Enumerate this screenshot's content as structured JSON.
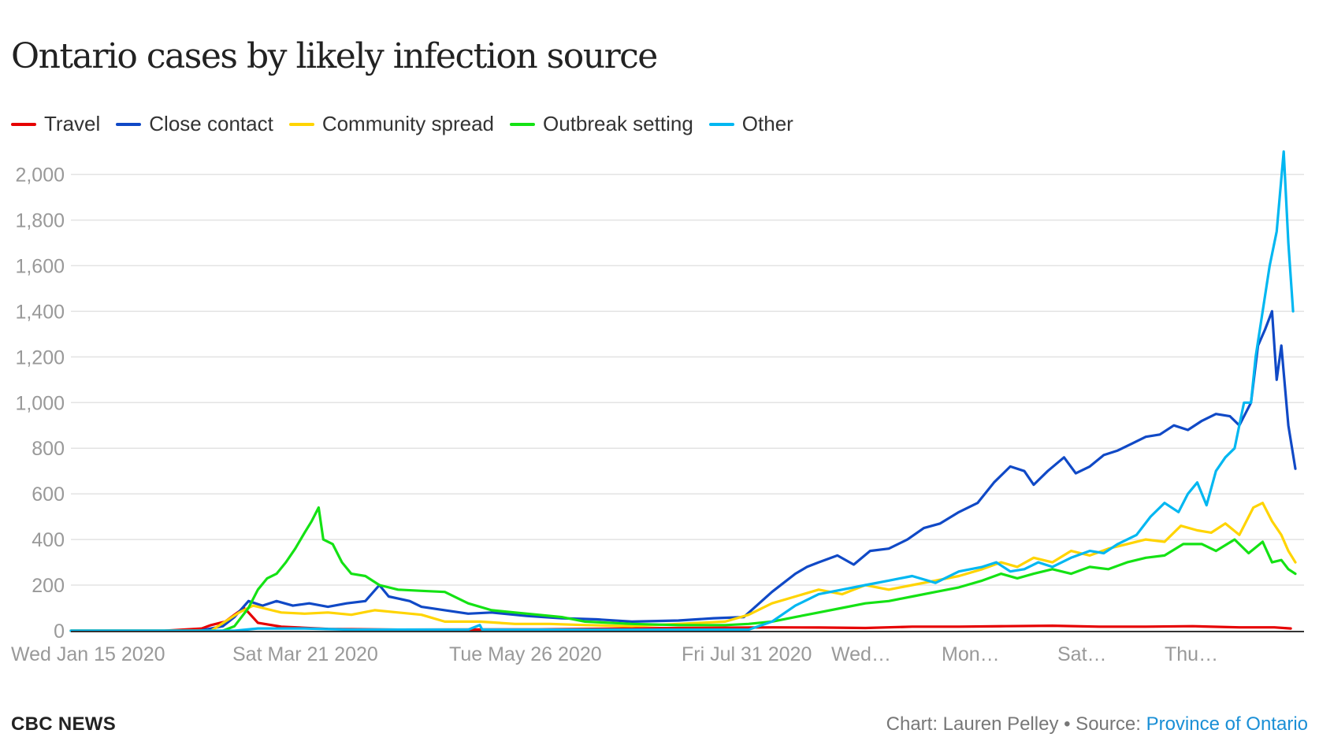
{
  "chart_data": {
    "type": "line",
    "title": "Ontario cases by likely infection source",
    "xlabel": "",
    "ylabel": "",
    "x_tick_labels": [
      "Wed Jan 15 2020",
      "Sat Mar 21 2020",
      "Tue May 26 2020",
      "Fri Jul 31 2020",
      "Wed…",
      "Mon…",
      "Sat…",
      "Thu…"
    ],
    "y_tick_labels": [
      "0",
      "200",
      "400",
      "600",
      "800",
      "1,000",
      "1,200",
      "1,400",
      "1,600",
      "1,800",
      "2,000"
    ],
    "ylim": [
      0,
      2100
    ],
    "x_range_days": [
      0,
      525
    ],
    "grid": true,
    "legend_position": "top-left",
    "series": [
      {
        "name": "Travel",
        "color": "#e60000",
        "points": [
          [
            0,
            0
          ],
          [
            40,
            0
          ],
          [
            56,
            10
          ],
          [
            60,
            25
          ],
          [
            66,
            40
          ],
          [
            70,
            70
          ],
          [
            74,
            100
          ],
          [
            76,
            80
          ],
          [
            80,
            35
          ],
          [
            90,
            18
          ],
          [
            110,
            8
          ],
          [
            140,
            5
          ],
          [
            200,
            6
          ],
          [
            260,
            12
          ],
          [
            300,
            15
          ],
          [
            320,
            14
          ],
          [
            340,
            12
          ],
          [
            360,
            18
          ],
          [
            380,
            18
          ],
          [
            400,
            20
          ],
          [
            420,
            22
          ],
          [
            440,
            18
          ],
          [
            460,
            18
          ],
          [
            480,
            20
          ],
          [
            500,
            15
          ],
          [
            515,
            15
          ],
          [
            522,
            10
          ]
        ]
      },
      {
        "name": "Close contact",
        "color": "#1049c6",
        "points": [
          [
            0,
            0
          ],
          [
            55,
            0
          ],
          [
            65,
            20
          ],
          [
            70,
            60
          ],
          [
            76,
            130
          ],
          [
            82,
            110
          ],
          [
            88,
            130
          ],
          [
            95,
            110
          ],
          [
            102,
            120
          ],
          [
            110,
            105
          ],
          [
            118,
            120
          ],
          [
            126,
            130
          ],
          [
            132,
            200
          ],
          [
            136,
            150
          ],
          [
            145,
            130
          ],
          [
            150,
            105
          ],
          [
            160,
            90
          ],
          [
            170,
            75
          ],
          [
            180,
            80
          ],
          [
            195,
            65
          ],
          [
            210,
            55
          ],
          [
            225,
            50
          ],
          [
            240,
            40
          ],
          [
            260,
            45
          ],
          [
            275,
            55
          ],
          [
            288,
            60
          ],
          [
            300,
            170
          ],
          [
            305,
            210
          ],
          [
            310,
            250
          ],
          [
            315,
            280
          ],
          [
            320,
            300
          ],
          [
            328,
            330
          ],
          [
            335,
            290
          ],
          [
            342,
            350
          ],
          [
            350,
            360
          ],
          [
            358,
            400
          ],
          [
            365,
            450
          ],
          [
            372,
            470
          ],
          [
            380,
            520
          ],
          [
            388,
            560
          ],
          [
            395,
            650
          ],
          [
            402,
            720
          ],
          [
            408,
            700
          ],
          [
            412,
            640
          ],
          [
            418,
            700
          ],
          [
            425,
            760
          ],
          [
            430,
            690
          ],
          [
            436,
            720
          ],
          [
            442,
            770
          ],
          [
            448,
            790
          ],
          [
            454,
            820
          ],
          [
            460,
            850
          ],
          [
            466,
            860
          ],
          [
            472,
            900
          ],
          [
            478,
            880
          ],
          [
            484,
            920
          ],
          [
            490,
            950
          ],
          [
            496,
            940
          ],
          [
            500,
            900
          ],
          [
            505,
            1000
          ],
          [
            508,
            1250
          ],
          [
            511,
            1320
          ],
          [
            514,
            1400
          ],
          [
            516,
            1100
          ],
          [
            518,
            1250
          ],
          [
            521,
            900
          ],
          [
            524,
            710
          ]
        ]
      },
      {
        "name": "Community spread",
        "color": "#ffd400",
        "points": [
          [
            0,
            0
          ],
          [
            60,
            0
          ],
          [
            66,
            40
          ],
          [
            72,
            80
          ],
          [
            78,
            110
          ],
          [
            84,
            95
          ],
          [
            90,
            80
          ],
          [
            100,
            75
          ],
          [
            110,
            80
          ],
          [
            120,
            70
          ],
          [
            130,
            90
          ],
          [
            140,
            80
          ],
          [
            150,
            70
          ],
          [
            160,
            40
          ],
          [
            175,
            40
          ],
          [
            190,
            30
          ],
          [
            205,
            30
          ],
          [
            220,
            25
          ],
          [
            240,
            20
          ],
          [
            260,
            30
          ],
          [
            280,
            40
          ],
          [
            290,
            70
          ],
          [
            300,
            120
          ],
          [
            310,
            150
          ],
          [
            320,
            180
          ],
          [
            330,
            160
          ],
          [
            340,
            200
          ],
          [
            350,
            180
          ],
          [
            360,
            200
          ],
          [
            370,
            220
          ],
          [
            380,
            240
          ],
          [
            390,
            270
          ],
          [
            398,
            300
          ],
          [
            405,
            280
          ],
          [
            412,
            320
          ],
          [
            420,
            300
          ],
          [
            428,
            350
          ],
          [
            436,
            330
          ],
          [
            444,
            360
          ],
          [
            452,
            380
          ],
          [
            460,
            400
          ],
          [
            468,
            390
          ],
          [
            475,
            460
          ],
          [
            482,
            440
          ],
          [
            488,
            430
          ],
          [
            494,
            470
          ],
          [
            500,
            420
          ],
          [
            506,
            540
          ],
          [
            510,
            560
          ],
          [
            514,
            480
          ],
          [
            518,
            420
          ],
          [
            521,
            350
          ],
          [
            524,
            300
          ]
        ]
      },
      {
        "name": "Outbreak setting",
        "color": "#14e214",
        "points": [
          [
            0,
            0
          ],
          [
            65,
            0
          ],
          [
            70,
            20
          ],
          [
            76,
            100
          ],
          [
            80,
            180
          ],
          [
            84,
            230
          ],
          [
            88,
            250
          ],
          [
            92,
            300
          ],
          [
            96,
            360
          ],
          [
            100,
            430
          ],
          [
            103,
            480
          ],
          [
            106,
            540
          ],
          [
            108,
            400
          ],
          [
            112,
            380
          ],
          [
            116,
            300
          ],
          [
            120,
            250
          ],
          [
            126,
            240
          ],
          [
            132,
            200
          ],
          [
            140,
            180
          ],
          [
            150,
            175
          ],
          [
            160,
            170
          ],
          [
            170,
            120
          ],
          [
            180,
            90
          ],
          [
            190,
            80
          ],
          [
            200,
            70
          ],
          [
            210,
            60
          ],
          [
            220,
            40
          ],
          [
            240,
            30
          ],
          [
            260,
            25
          ],
          [
            280,
            25
          ],
          [
            290,
            30
          ],
          [
            300,
            40
          ],
          [
            310,
            60
          ],
          [
            320,
            80
          ],
          [
            330,
            100
          ],
          [
            340,
            120
          ],
          [
            350,
            130
          ],
          [
            360,
            150
          ],
          [
            370,
            170
          ],
          [
            380,
            190
          ],
          [
            390,
            220
          ],
          [
            398,
            250
          ],
          [
            405,
            230
          ],
          [
            412,
            250
          ],
          [
            420,
            270
          ],
          [
            428,
            250
          ],
          [
            436,
            280
          ],
          [
            444,
            270
          ],
          [
            452,
            300
          ],
          [
            460,
            320
          ],
          [
            468,
            330
          ],
          [
            476,
            380
          ],
          [
            484,
            380
          ],
          [
            490,
            350
          ],
          [
            498,
            400
          ],
          [
            504,
            340
          ],
          [
            510,
            390
          ],
          [
            514,
            300
          ],
          [
            518,
            310
          ],
          [
            521,
            270
          ],
          [
            524,
            250
          ]
        ]
      },
      {
        "name": "Other",
        "color": "#00b7f1",
        "points": [
          [
            0,
            0
          ],
          [
            70,
            0
          ],
          [
            80,
            10
          ],
          [
            100,
            10
          ],
          [
            120,
            5
          ],
          [
            170,
            5
          ],
          [
            175,
            25
          ],
          [
            176,
            5
          ],
          [
            200,
            5
          ],
          [
            260,
            5
          ],
          [
            290,
            5
          ],
          [
            300,
            40
          ],
          [
            310,
            110
          ],
          [
            320,
            160
          ],
          [
            330,
            180
          ],
          [
            340,
            200
          ],
          [
            350,
            220
          ],
          [
            360,
            240
          ],
          [
            370,
            210
          ],
          [
            380,
            260
          ],
          [
            390,
            280
          ],
          [
            396,
            300
          ],
          [
            402,
            260
          ],
          [
            408,
            270
          ],
          [
            414,
            300
          ],
          [
            420,
            280
          ],
          [
            428,
            320
          ],
          [
            436,
            350
          ],
          [
            442,
            340
          ],
          [
            448,
            380
          ],
          [
            456,
            420
          ],
          [
            462,
            500
          ],
          [
            468,
            560
          ],
          [
            474,
            520
          ],
          [
            478,
            600
          ],
          [
            482,
            650
          ],
          [
            486,
            550
          ],
          [
            490,
            700
          ],
          [
            494,
            760
          ],
          [
            498,
            800
          ],
          [
            502,
            1000
          ],
          [
            505,
            1000
          ],
          [
            507,
            1200
          ],
          [
            510,
            1400
          ],
          [
            513,
            1600
          ],
          [
            516,
            1750
          ],
          [
            519,
            2100
          ],
          [
            521,
            1700
          ],
          [
            523,
            1400
          ]
        ]
      }
    ]
  },
  "footer": {
    "brand": "CBC NEWS",
    "credit_prefix": "Chart: Lauren Pelley • Source: ",
    "source_link": "Province of Ontario"
  }
}
